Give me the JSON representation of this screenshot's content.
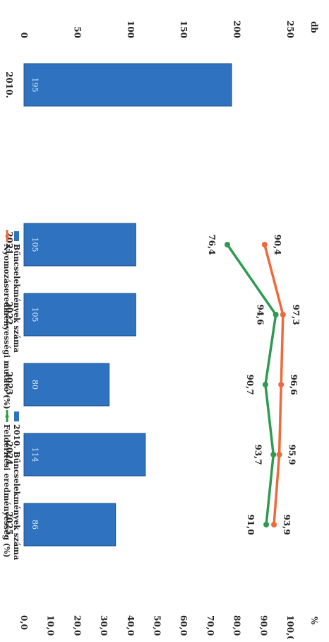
{
  "chart_data": {
    "type": "bar",
    "orientation": "rotated-90-clockwise",
    "categories": [
      "2010.",
      "2021.",
      "2022.",
      "2023.",
      "2024.",
      "2025."
    ],
    "left_axis": {
      "unit_label": "db",
      "range": [
        0,
        250
      ],
      "ticks": [
        "0",
        "50",
        "100",
        "150",
        "200",
        "250"
      ]
    },
    "right_axis": {
      "unit_label": "%",
      "range": [
        0,
        100
      ],
      "ticks": [
        "0,0",
        "10,0",
        "20,0",
        "30,0",
        "40,0",
        "50,0",
        "60,0",
        "70,0",
        "80,0",
        "90,0",
        "100,0"
      ]
    },
    "series": [
      {
        "name": "Bűncselekmények száma",
        "kind": "bar",
        "axis": "left",
        "color": "#2F73C0",
        "values": [
          195,
          105,
          105,
          80,
          114,
          86
        ],
        "labels": [
          "195",
          "105",
          "105",
          "80",
          "114",
          "86"
        ]
      },
      {
        "name": "Nyomozáseredményességi mutató (%)",
        "kind": "line",
        "axis": "right",
        "color": "#EE6A3A",
        "values": [
          null,
          90.4,
          97.3,
          96.6,
          95.9,
          93.9
        ],
        "labels": [
          "",
          "90,4",
          "97,3",
          "96,6",
          "95,9",
          "93,9"
        ]
      },
      {
        "name": "Felderítési eredményesség (%)",
        "kind": "line",
        "axis": "right",
        "color": "#2E9A52",
        "values": [
          null,
          76.4,
          94.6,
          90.7,
          93.7,
          91.0
        ],
        "labels": [
          "",
          "76,4",
          "94,6",
          "90,7",
          "93,7",
          "91,0"
        ]
      }
    ],
    "legend": {
      "placement": "top",
      "entries": [
        {
          "label": "Bűncselekmények száma",
          "color": "#2F73C0",
          "kind": "bar"
        },
        {
          "label": "Nyomozáseredményességi mutató (%)",
          "color": "#EE6A3A",
          "kind": "line"
        },
        {
          "label": "2010. Bűncselekmények száma",
          "color": "#2F73C0",
          "kind": "bar"
        },
        {
          "label": "Felderítési eredményesség (%)",
          "color": "#2E9A52",
          "kind": "line"
        }
      ]
    },
    "grid": false
  }
}
